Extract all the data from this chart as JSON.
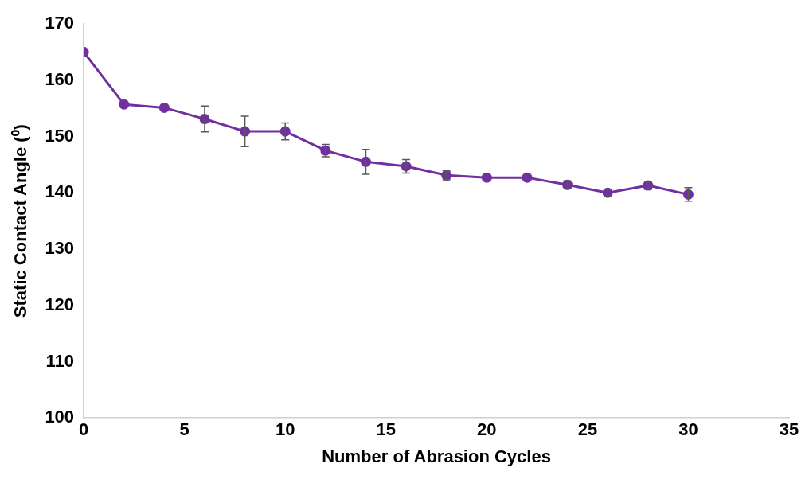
{
  "chart_data": {
    "type": "line",
    "xlabel": "Number of Abrasion Cycles",
    "ylabel": "Static Contact Angle (⁰)",
    "x": [
      0,
      2,
      4,
      6,
      8,
      10,
      12,
      14,
      16,
      18,
      20,
      22,
      24,
      26,
      28,
      30
    ],
    "series": [
      {
        "color": "#7030a0",
        "values": [
          165,
          155.7,
          155.1,
          153.1,
          150.9,
          150.9,
          147.5,
          145.5,
          144.7,
          143.1,
          142.7,
          142.7,
          141.4,
          140,
          141.3,
          139.7
        ],
        "errors": [
          null,
          null,
          null,
          2.3,
          2.7,
          1.5,
          1.1,
          2.2,
          1.2,
          0.8,
          null,
          null,
          0.7,
          0.6,
          0.7,
          1.2
        ]
      }
    ],
    "xlim": [
      0,
      35
    ],
    "xticks": [
      0,
      5,
      10,
      15,
      20,
      25,
      30,
      35
    ],
    "ylim": [
      100,
      170
    ],
    "yticks": [
      100,
      110,
      120,
      130,
      140,
      150,
      160,
      170
    ],
    "grid": false,
    "legend": false,
    "marker": "circle",
    "line_style": "solid"
  }
}
